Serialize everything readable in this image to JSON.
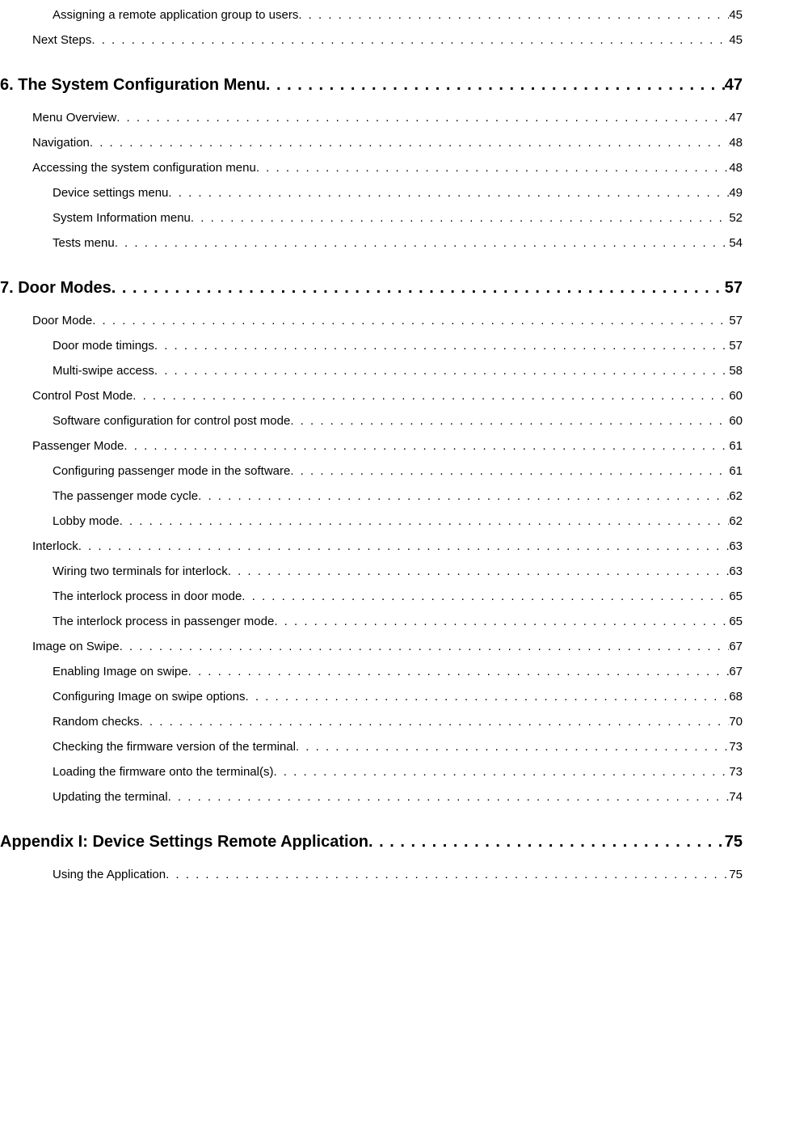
{
  "toc": [
    {
      "level": 2,
      "title": "Assigning a remote application group to users",
      "page": "45"
    },
    {
      "level": 1,
      "title": "Next Steps",
      "page": "45"
    },
    {
      "level": "chapter",
      "title": "6. The System Configuration Menu",
      "page": "47"
    },
    {
      "level": 1,
      "title": "Menu Overview",
      "page": "47"
    },
    {
      "level": 1,
      "title": "Navigation",
      "page": "48"
    },
    {
      "level": 1,
      "title": "Accessing the system configuration menu",
      "page": "48"
    },
    {
      "level": 2,
      "title": "Device settings menu",
      "page": "49"
    },
    {
      "level": 2,
      "title": "System Information menu",
      "page": "52"
    },
    {
      "level": 2,
      "title": "Tests menu",
      "page": "54"
    },
    {
      "level": "chapter",
      "title": "7. Door Modes",
      "page": "57"
    },
    {
      "level": 1,
      "title": "Door Mode",
      "page": "57"
    },
    {
      "level": 2,
      "title": "Door mode timings",
      "page": "57"
    },
    {
      "level": 2,
      "title": "Multi-swipe access",
      "page": "58"
    },
    {
      "level": 1,
      "title": "Control Post Mode",
      "page": "60"
    },
    {
      "level": 2,
      "title": "Software configuration for control post mode",
      "page": "60"
    },
    {
      "level": 1,
      "title": "Passenger Mode",
      "page": "61"
    },
    {
      "level": 2,
      "title": "Configuring passenger mode in the software",
      "page": "61"
    },
    {
      "level": 2,
      "title": "The passenger mode cycle",
      "page": "62"
    },
    {
      "level": 2,
      "title": "Lobby mode",
      "page": "62"
    },
    {
      "level": 1,
      "title": "Interlock",
      "page": "63"
    },
    {
      "level": 2,
      "title": "Wiring two terminals for interlock",
      "page": "63"
    },
    {
      "level": 2,
      "title": "The interlock process in door mode",
      "page": "65"
    },
    {
      "level": 2,
      "title": "The interlock process in passenger mode",
      "page": "65"
    },
    {
      "level": 1,
      "title": "Image on Swipe",
      "page": "67"
    },
    {
      "level": 2,
      "title": "Enabling Image on swipe",
      "page": "67"
    },
    {
      "level": 2,
      "title": "Configuring Image on swipe options",
      "page": "68"
    },
    {
      "level": 2,
      "title": "Random checks",
      "page": "70"
    },
    {
      "level": 2,
      "title": "Checking the firmware version of the terminal",
      "page": "73"
    },
    {
      "level": 2,
      "title": "Loading the firmware onto the terminal(s)",
      "page": "73"
    },
    {
      "level": 2,
      "title": "Updating the terminal",
      "page": "74"
    },
    {
      "level": "chapter",
      "title": "Appendix I:  Device Settings Remote Application",
      "page": "75"
    },
    {
      "level": 2,
      "title": "Using the Application",
      "page": "75"
    }
  ]
}
